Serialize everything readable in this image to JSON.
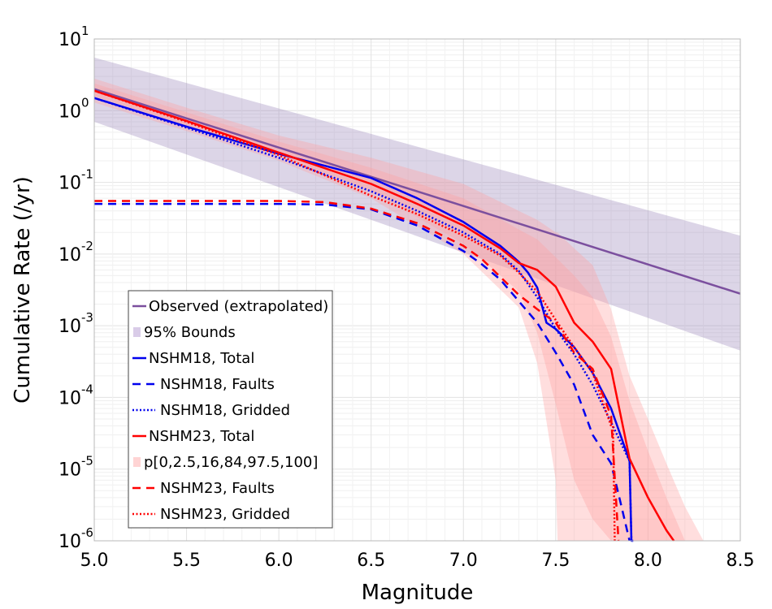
{
  "chart_data": {
    "type": "line",
    "xlabel": "Magnitude",
    "ylabel": "Cumulative Rate (/yr)",
    "xlim": [
      5.0,
      8.5
    ],
    "ylim": [
      1e-06,
      10
    ],
    "yscale": "log",
    "grid": true,
    "legend_position": "bottom-left",
    "x_ticks": [
      "5.0",
      "5.5",
      "6.0",
      "6.5",
      "7.0",
      "7.5",
      "8.0",
      "8.5"
    ],
    "y_ticks": [
      {
        "base": "10",
        "exp": "1",
        "value": 10
      },
      {
        "base": "10",
        "exp": "0",
        "value": 1
      },
      {
        "base": "10",
        "exp": "-1",
        "value": 0.1
      },
      {
        "base": "10",
        "exp": "-2",
        "value": 0.01
      },
      {
        "base": "10",
        "exp": "-3",
        "value": 0.001
      },
      {
        "base": "10",
        "exp": "-4",
        "value": 0.0001
      },
      {
        "base": "10",
        "exp": "-5",
        "value": 1e-05
      },
      {
        "base": "10",
        "exp": "-6",
        "value": 1e-06
      }
    ],
    "bands": [
      {
        "name": "95% Bounds",
        "color": "#9b86bb",
        "opacity": 0.35,
        "x": [
          5.0,
          8.5
        ],
        "lower": [
          0.7,
          0.00045
        ],
        "upper": [
          5.5,
          0.018
        ]
      },
      {
        "color": "#ffa0a0",
        "opacity": 0.35,
        "x": [
          5.0,
          5.5,
          6.0,
          6.5,
          7.0,
          7.3,
          7.4,
          7.5,
          7.51,
          7.6,
          7.7,
          7.8,
          7.9,
          8.0,
          8.1,
          8.2,
          8.3
        ],
        "lower": [
          1.3,
          0.52,
          0.2,
          0.06,
          0.01,
          0.0018,
          0.0003,
          7e-06,
          1e-06,
          1e-06,
          1e-06,
          1e-06,
          1e-06,
          1e-06,
          1e-06,
          1e-06,
          1e-06
        ],
        "upper": [
          2.8,
          1.1,
          0.45,
          0.22,
          0.095,
          0.04,
          0.03,
          0.02,
          0.02,
          0.012,
          0.007,
          0.0017,
          0.0002,
          5e-05,
          1.2e-05,
          3e-06,
          1e-06
        ]
      },
      {
        "color": "#ffa0a0",
        "opacity": 0.35,
        "x": [
          5.0,
          5.5,
          6.0,
          6.5,
          7.0,
          7.3,
          7.4,
          7.5,
          7.6,
          7.7,
          7.8,
          7.9,
          8.0,
          8.1,
          8.2
        ],
        "lower": [
          1.6,
          0.62,
          0.24,
          0.075,
          0.014,
          0.003,
          0.0008,
          8e-05,
          7e-06,
          2e-06,
          1e-06,
          1e-06,
          1e-06,
          1e-06,
          1e-06
        ],
        "upper": [
          2.4,
          0.95,
          0.37,
          0.16,
          0.06,
          0.022,
          0.016,
          0.009,
          0.005,
          0.0025,
          0.0007,
          9e-05,
          1.8e-05,
          4e-06,
          1e-06
        ]
      }
    ],
    "series": [
      {
        "name": "Observed (extrapolated)",
        "color": "#7b4f9e",
        "dash": "solid",
        "width": 2.5,
        "x": [
          5.0,
          8.5
        ],
        "y": [
          2.0,
          0.0028
        ]
      },
      {
        "name": "NSHM18, Total",
        "color": "#0000ee",
        "dash": "solid",
        "width": 2.5,
        "x": [
          5.0,
          5.5,
          6.0,
          6.25,
          6.5,
          6.75,
          7.0,
          7.1,
          7.2,
          7.3,
          7.35,
          7.4,
          7.45,
          7.5,
          7.6,
          7.7,
          7.8,
          7.9,
          7.91,
          7.92
        ],
        "y": [
          1.5,
          0.6,
          0.25,
          0.17,
          0.115,
          0.06,
          0.028,
          0.019,
          0.013,
          0.0078,
          0.0055,
          0.0034,
          0.0011,
          0.0009,
          0.0005,
          0.00022,
          7e-05,
          1.3e-05,
          1e-06,
          1e-06
        ]
      },
      {
        "name": "NSHM18, Faults",
        "color": "#0000ee",
        "dash": "dashed",
        "width": 2.5,
        "x": [
          5.0,
          6.0,
          6.25,
          6.5,
          6.75,
          7.0,
          7.1,
          7.2,
          7.3,
          7.4,
          7.5,
          7.6,
          7.7,
          7.8,
          7.85,
          7.9
        ],
        "y": [
          0.05,
          0.05,
          0.049,
          0.042,
          0.025,
          0.011,
          0.0072,
          0.0044,
          0.0022,
          0.0011,
          0.00042,
          0.00015,
          3e-05,
          1.2e-05,
          3.5e-06,
          1e-06
        ]
      },
      {
        "name": "NSHM18, Gridded",
        "color": "#0000ee",
        "dash": "dotted",
        "width": 2.5,
        "x": [
          5.0,
          5.5,
          6.0,
          6.5,
          6.75,
          7.0,
          7.2,
          7.3,
          7.4,
          7.5,
          7.6,
          7.7,
          7.8,
          7.9,
          7.91
        ],
        "y": [
          1.5,
          0.58,
          0.22,
          0.075,
          0.04,
          0.02,
          0.01,
          0.0058,
          0.0025,
          0.0009,
          0.0004,
          0.00015,
          4.5e-05,
          1.3e-05,
          1e-06
        ]
      },
      {
        "name": "NSHM23, Total",
        "color": "#ff0000",
        "dash": "solid",
        "width": 2.5,
        "x": [
          5.0,
          5.5,
          6.0,
          6.5,
          6.75,
          7.0,
          7.2,
          7.3,
          7.4,
          7.5,
          7.6,
          7.7,
          7.8,
          7.9,
          8.0,
          8.1,
          8.14
        ],
        "y": [
          1.9,
          0.72,
          0.26,
          0.095,
          0.05,
          0.025,
          0.012,
          0.0075,
          0.006,
          0.0035,
          0.0011,
          0.0006,
          0.00025,
          1.4e-05,
          4e-06,
          1.4e-06,
          1e-06
        ]
      },
      {
        "name": "NSHM23, Faults",
        "color": "#ff0000",
        "dash": "dashed",
        "width": 2.5,
        "x": [
          5.0,
          6.0,
          6.25,
          6.5,
          6.75,
          7.0,
          7.1,
          7.2,
          7.3,
          7.4,
          7.5,
          7.6,
          7.7,
          7.8,
          7.84
        ],
        "y": [
          0.055,
          0.055,
          0.053,
          0.043,
          0.027,
          0.013,
          0.0085,
          0.0048,
          0.0027,
          0.0017,
          0.0011,
          0.00042,
          0.00025,
          5.5e-05,
          1e-06
        ]
      },
      {
        "name": "NSHM23, Gridded",
        "color": "#ff0000",
        "dash": "dotted",
        "width": 2.5,
        "x": [
          5.0,
          5.5,
          6.0,
          6.5,
          6.75,
          7.0,
          7.2,
          7.3,
          7.4,
          7.5,
          7.6,
          7.7,
          7.8,
          7.81,
          7.82
        ],
        "y": [
          1.9,
          0.7,
          0.24,
          0.065,
          0.036,
          0.018,
          0.0095,
          0.0055,
          0.003,
          0.0012,
          0.0005,
          0.00022,
          4e-05,
          4e-05,
          1e-06
        ]
      }
    ],
    "legend": [
      {
        "label": "Observed (extrapolated)",
        "kind": "line",
        "color": "#7b4f9e",
        "dash": "solid"
      },
      {
        "label": "95% Bounds",
        "kind": "patch",
        "color": "#d9cce8"
      },
      {
        "label": "NSHM18, Total",
        "kind": "line",
        "color": "#0000ee",
        "dash": "solid"
      },
      {
        "label": "NSHM18, Faults",
        "kind": "line",
        "color": "#0000ee",
        "dash": "dashed"
      },
      {
        "label": "NSHM18, Gridded",
        "kind": "line",
        "color": "#0000ee",
        "dash": "dotted"
      },
      {
        "label": "NSHM23, Total",
        "kind": "line",
        "color": "#ff0000",
        "dash": "solid"
      },
      {
        "label": "p[0,2.5,16,84,97.5,100]",
        "kind": "patch",
        "color": "#ffd4d4"
      },
      {
        "label": "NSHM23, Faults",
        "kind": "line",
        "color": "#ff0000",
        "dash": "dashed"
      },
      {
        "label": "NSHM23, Gridded",
        "kind": "line",
        "color": "#ff0000",
        "dash": "dotted"
      }
    ]
  }
}
